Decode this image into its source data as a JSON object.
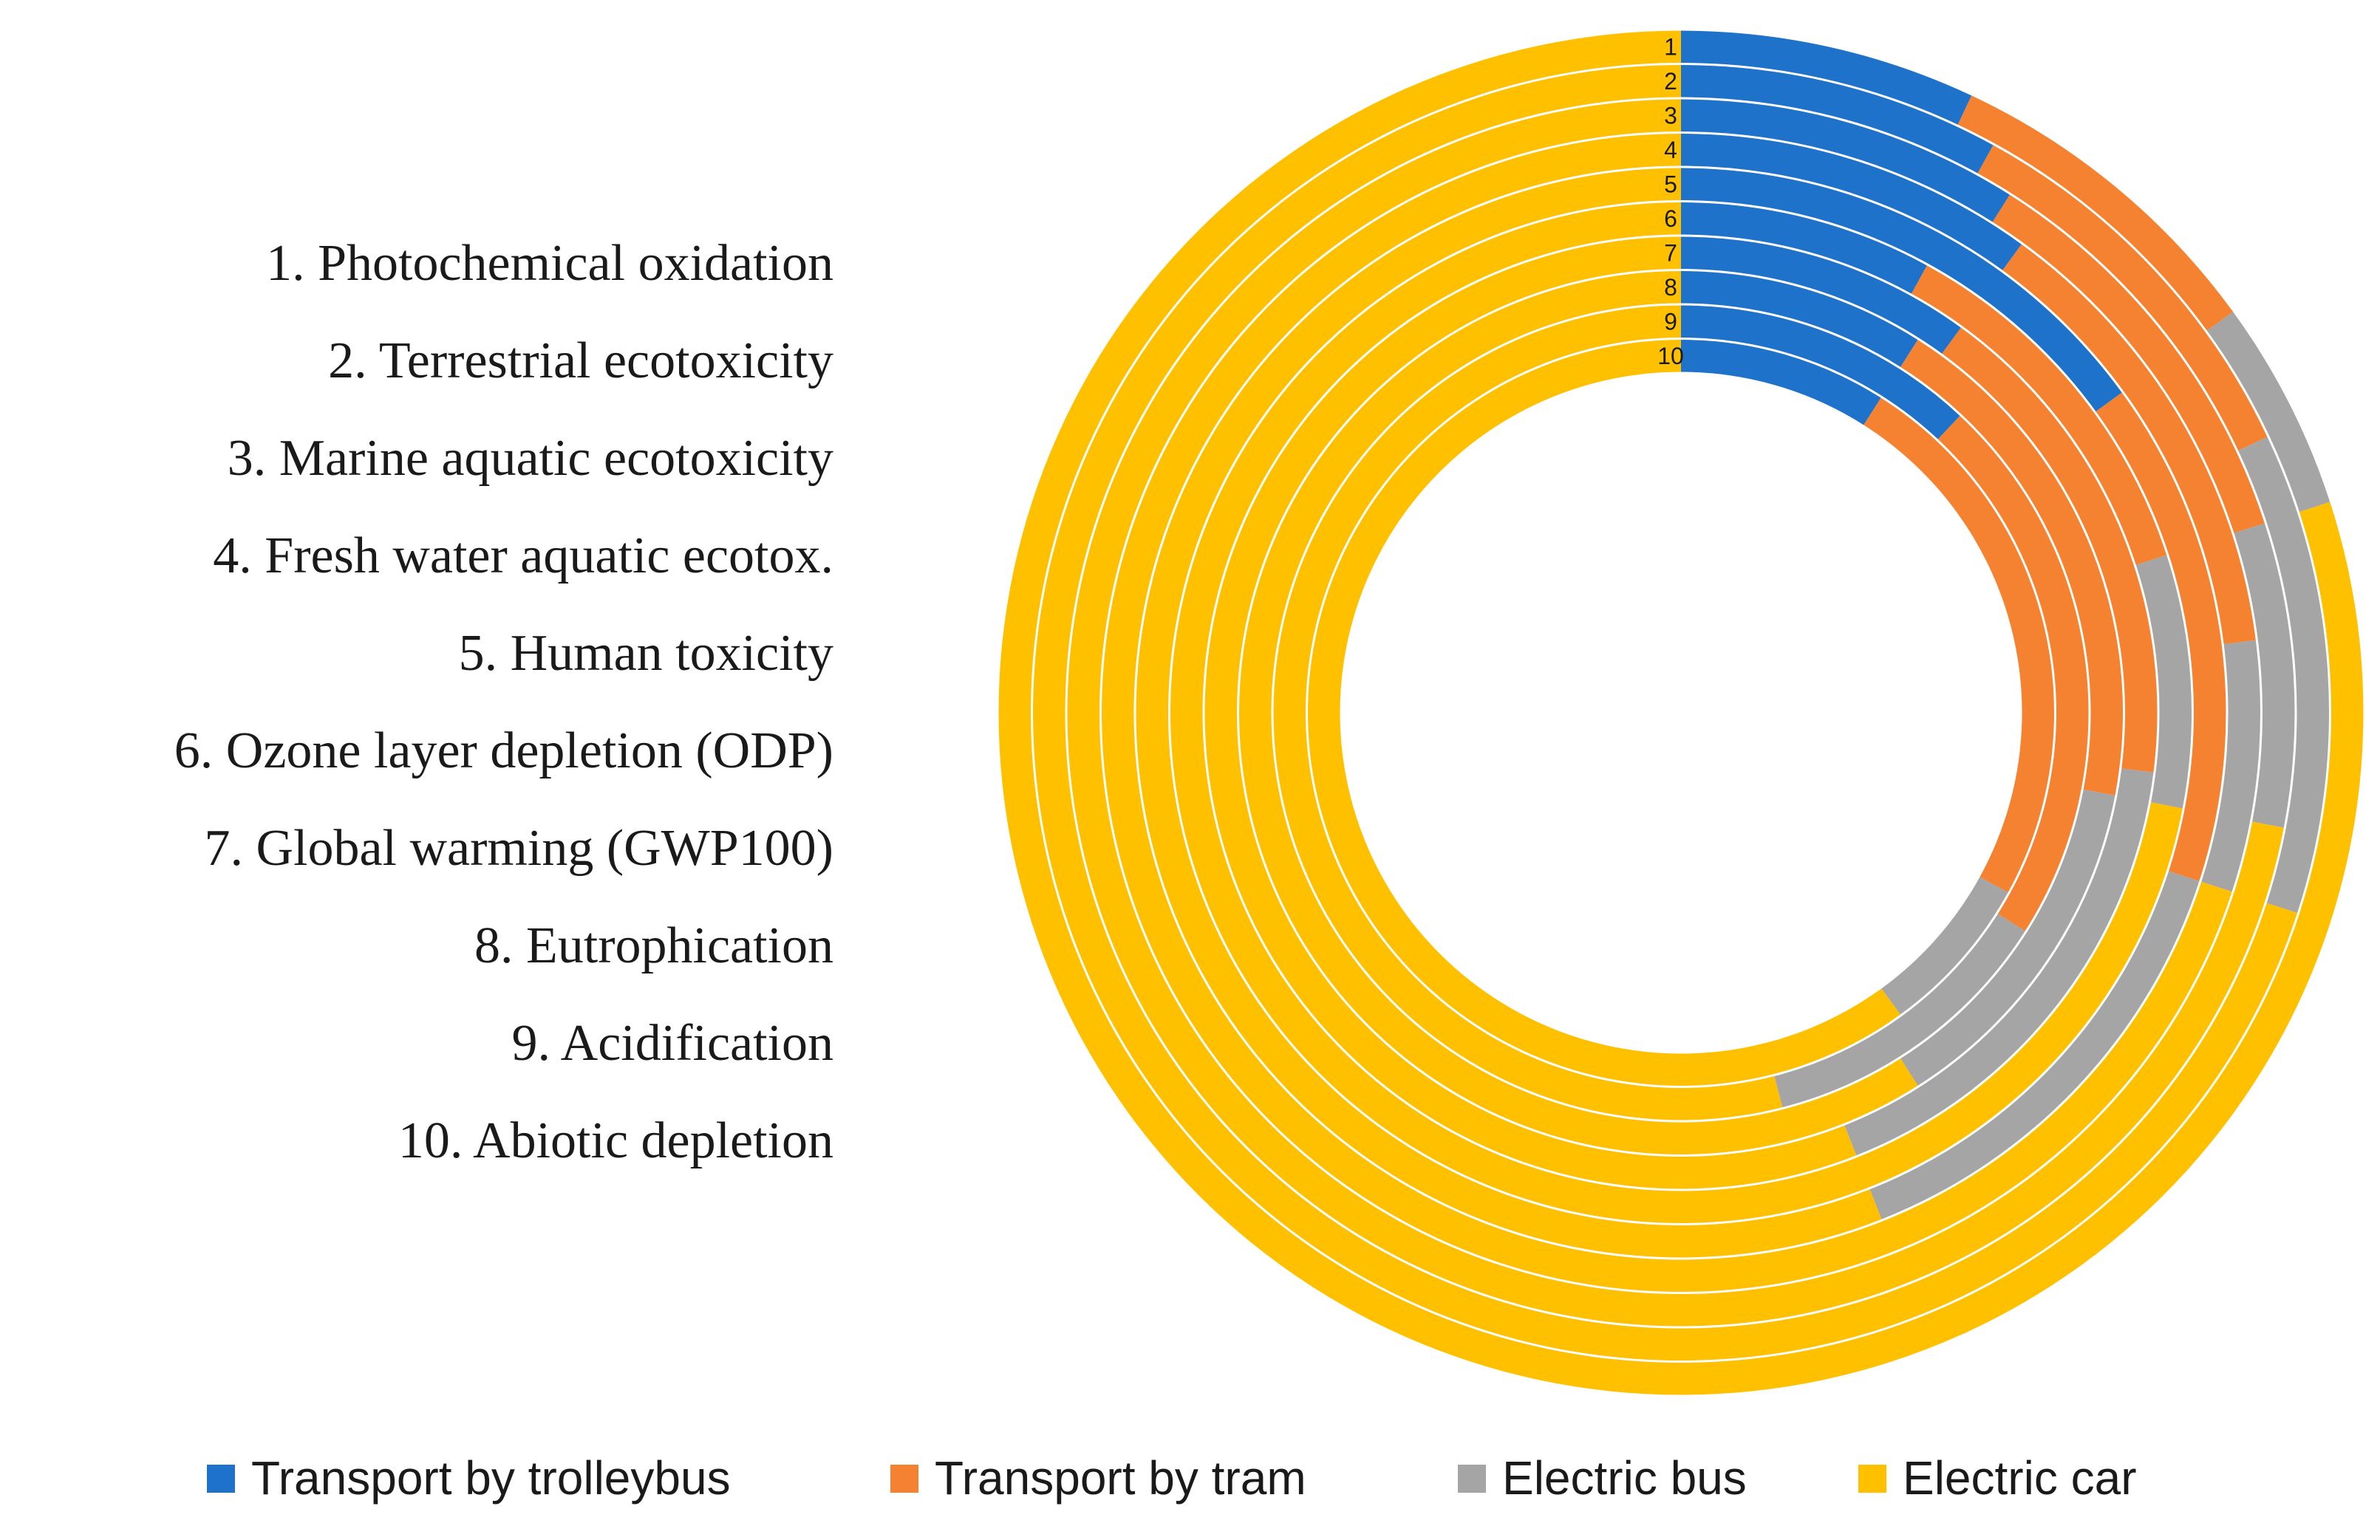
{
  "chart_data": {
    "type": "multi-level doughnut (radial stacked)",
    "title": "",
    "unit": "%",
    "categories": [
      "1. Photochemical oxidation",
      "2. Terrestrial ecotoxicity",
      "3. Marine aquatic ecotoxicity",
      "4. Fresh water aquatic ecotox.",
      "5. Human toxicity",
      "6. Ozone layer depletion (ODP)",
      "7. Global warming (GWP100)",
      "8. Eutrophication",
      "9. Acidification",
      "10. Abiotic depletion"
    ],
    "ring_numbers": [
      "1",
      "2",
      "3",
      "4",
      "5",
      "6",
      "7",
      "8",
      "9",
      "10"
    ],
    "series": [
      {
        "name": "Transport by trolleybus",
        "color": "#1F72C9",
        "values": [
          7,
          8,
          9,
          10,
          15,
          8,
          10,
          9,
          12,
          9
        ]
      },
      {
        "name": "Transport by tram",
        "color": "#F58230",
        "values": [
          8,
          10,
          11,
          13,
          15,
          12,
          17,
          19,
          22,
          24
        ]
      },
      {
        "name": "Electric bus",
        "color": "#A5A5A5",
        "values": [
          5,
          12,
          8,
          7,
          14,
          8,
          17,
          13,
          12,
          7
        ]
      },
      {
        "name": "Electric car",
        "color": "#FFC000",
        "values": [
          80,
          70,
          72,
          70,
          56,
          72,
          56,
          59,
          54,
          60
        ]
      }
    ]
  },
  "legend": {
    "items": [
      {
        "label": "Transport by trolleybus",
        "color": "#1F72C9"
      },
      {
        "label": "Transport by tram",
        "color": "#F58230"
      },
      {
        "label": "Electric bus",
        "color": "#A5A5A5"
      },
      {
        "label": "Electric car",
        "color": "#FFC000"
      }
    ]
  }
}
